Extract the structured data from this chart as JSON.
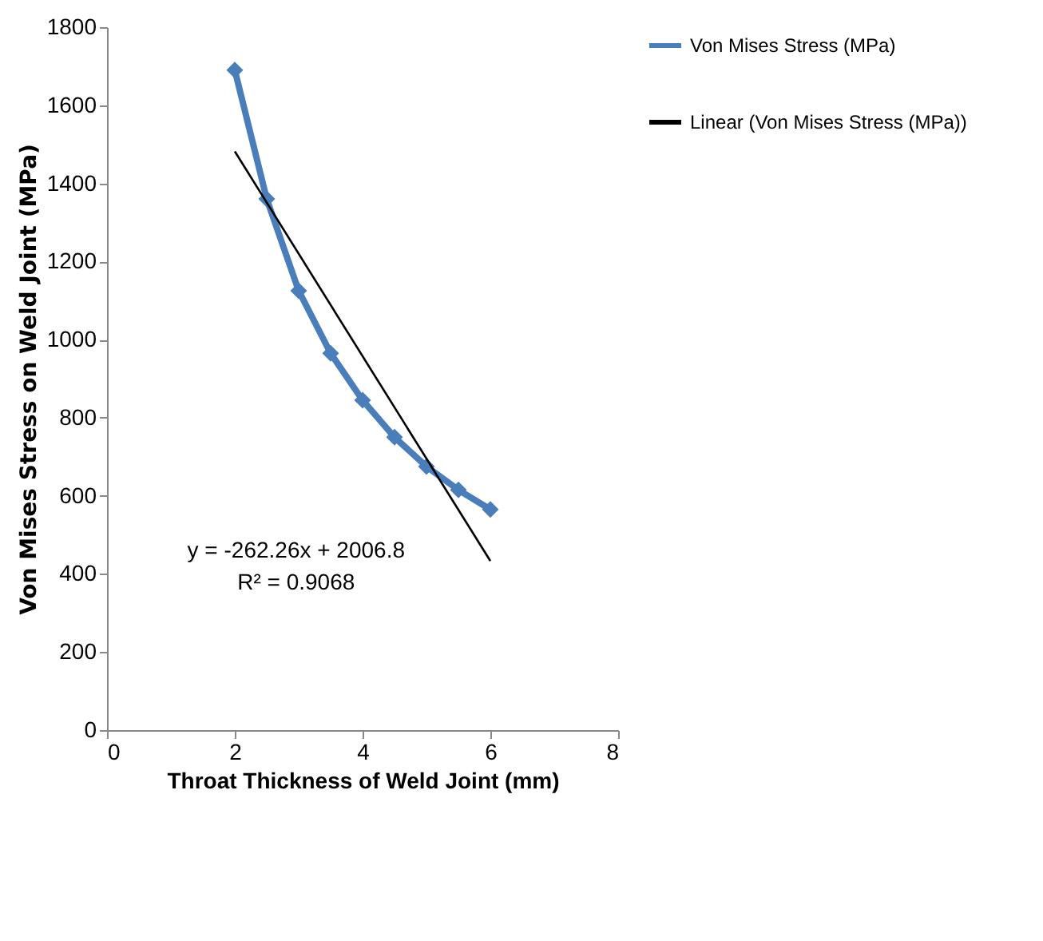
{
  "chart_data": {
    "type": "line",
    "xlabel": "Throat Thickness of Weld Joint (mm)",
    "ylabel": "Von Mises  Stress on Weld Joint (MPa)",
    "x": [
      2,
      2.5,
      3,
      3.5,
      4,
      4.5,
      5,
      5.5,
      6
    ],
    "series": [
      {
        "name": "Von Mises Stress (MPa)",
        "color": "#4a7ebb",
        "marker": "diamond",
        "values": [
          1690,
          1360,
          1125,
          965,
          845,
          750,
          675,
          615,
          565
        ]
      },
      {
        "name": "Linear (Von Mises Stress (MPa))",
        "color": "#000000",
        "marker": "none",
        "x": [
          2,
          6
        ],
        "values": [
          1482,
          433
        ]
      }
    ],
    "xlim": [
      0,
      8
    ],
    "xticks": [
      0,
      2,
      4,
      6,
      8
    ],
    "ylim": [
      0,
      1800
    ],
    "yticks": [
      0,
      200,
      400,
      600,
      800,
      1000,
      1200,
      1400,
      1600,
      1800
    ],
    "grid": false,
    "legend": "right",
    "annotations": [
      "y = -262.26x + 2006.8",
      "R² = 0.9068"
    ]
  }
}
